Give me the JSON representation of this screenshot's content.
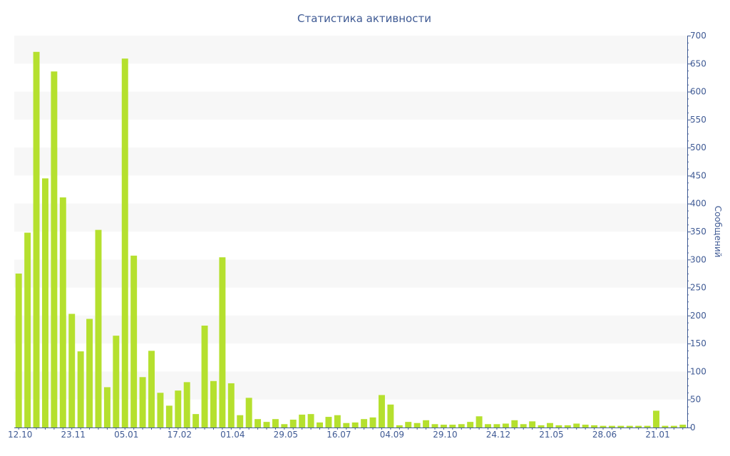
{
  "chart_data": {
    "type": "bar",
    "title": "Статистика активности",
    "ylabel": "Сообщений",
    "xlabel": "",
    "ylim": [
      0,
      700
    ],
    "y_ticks": [
      0,
      50,
      100,
      150,
      200,
      250,
      300,
      350,
      400,
      450,
      500,
      550,
      600,
      650,
      700
    ],
    "y_axis_position": "right",
    "x_tick_labels": [
      "12.10",
      "23.11",
      "05.01",
      "17.02",
      "01.04",
      "29.05",
      "16.07",
      "04.09",
      "29.10",
      "24.12",
      "21.05",
      "28.06",
      "21.01"
    ],
    "x_tick_label_bar_index": [
      0,
      6,
      12,
      18,
      24,
      30,
      36,
      42,
      48,
      54,
      60,
      66,
      72
    ],
    "values": [
      275,
      348,
      671,
      445,
      636,
      411,
      203,
      136,
      194,
      353,
      72,
      164,
      659,
      307,
      90,
      137,
      62,
      39,
      66,
      81,
      24,
      182,
      83,
      304,
      79,
      22,
      53,
      15,
      10,
      15,
      6,
      14,
      23,
      24,
      9,
      19,
      22,
      8,
      9,
      15,
      18,
      58,
      41,
      4,
      10,
      8,
      13,
      6,
      5,
      5,
      6,
      10,
      20,
      6,
      6,
      7,
      13,
      6,
      11,
      4,
      8,
      4,
      4,
      7,
      5,
      4,
      3,
      3,
      3,
      3,
      3,
      3,
      30,
      3,
      3,
      5
    ],
    "grid": "alternating horizontal bands",
    "legend": "none",
    "colors": {
      "bar": "#b5e02e",
      "band": "#f7f7f7",
      "axis": "#3f5a94",
      "text": "#3f5a94"
    }
  }
}
